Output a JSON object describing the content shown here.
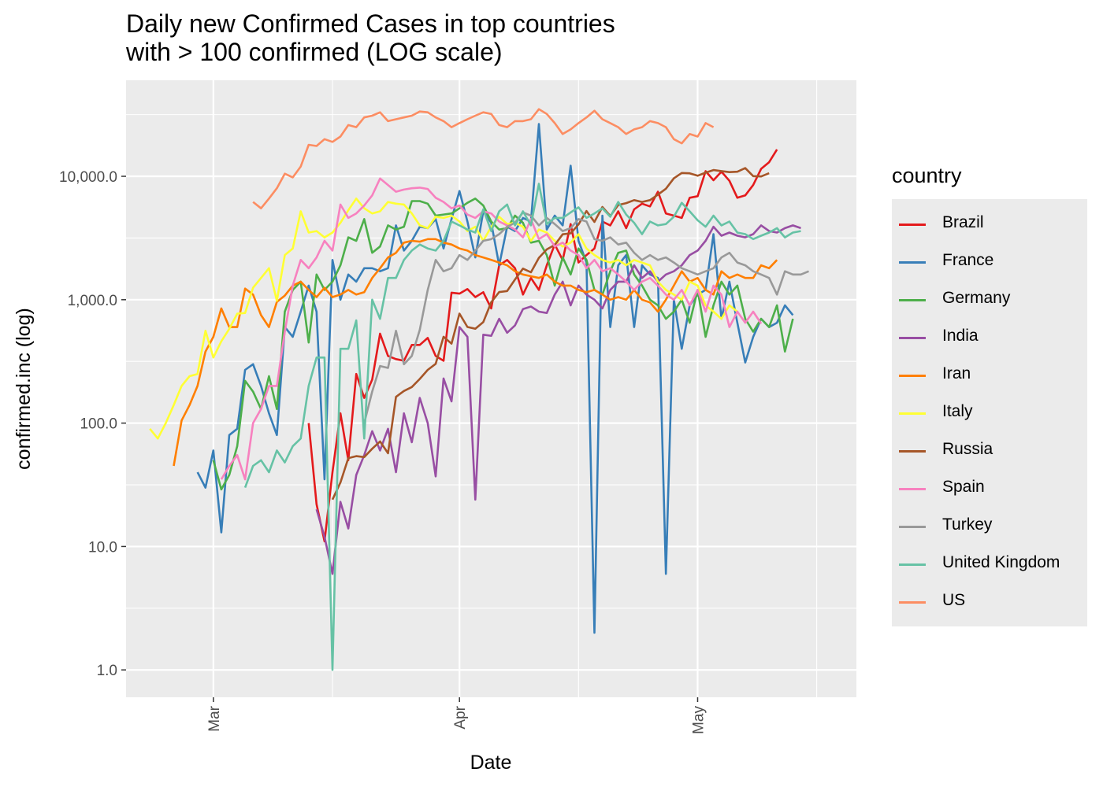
{
  "chart_data": {
    "type": "line",
    "title": [
      "Daily new Confirmed Cases in top countries",
      "with >  100  confirmed (LOG scale)"
    ],
    "xlabel": "Date",
    "ylabel": "confirmed.inc (log)",
    "yscale": "log10",
    "ylim": [
      0.6,
      60000
    ],
    "xlim": [
      "2020-02-19",
      "2020-05-21"
    ],
    "y_ticks": [
      {
        "value": 1,
        "label": "1.0"
      },
      {
        "value": 10,
        "label": "10.0"
      },
      {
        "value": 100,
        "label": "100.0"
      },
      {
        "value": 1000,
        "label": "1,000.0"
      },
      {
        "value": 10000,
        "label": "10,000.0"
      }
    ],
    "x_ticks": [
      {
        "date": "2020-03-01",
        "label": "Mar"
      },
      {
        "date": "2020-04-01",
        "label": "Apr"
      },
      {
        "date": "2020-05-01",
        "label": "May"
      }
    ],
    "x_minor_grid": [
      "2020-03-16",
      "2020-04-16",
      "2020-05-16"
    ],
    "grid": true,
    "legend": {
      "title": "country",
      "position": "right"
    },
    "series": [
      {
        "name": "Brazil",
        "color": "#e41a1c",
        "start": "2020-03-13",
        "values": [
          100,
          22,
          11,
          40,
          120,
          50,
          250,
          160,
          225,
          530,
          350,
          330,
          320,
          430,
          430,
          490,
          350,
          320,
          1140,
          1120,
          1220,
          1050,
          1150,
          850,
          1900,
          2100,
          1800,
          1100,
          1500,
          1200,
          1900,
          2800,
          2100,
          4100,
          2000,
          2300,
          2600,
          4300,
          4000,
          5200,
          3800,
          5400,
          6000,
          5700,
          7500,
          5000,
          4800,
          4600,
          6700,
          6900,
          11000,
          9300,
          10900,
          9200,
          6700,
          7000,
          8500,
          11500,
          13000,
          16500
        ]
      },
      {
        "name": "France",
        "color": "#377eb8",
        "start": "2020-02-28",
        "values": [
          40,
          30,
          60,
          13,
          80,
          90,
          270,
          300,
          200,
          120,
          80,
          600,
          500,
          800,
          1300,
          800,
          35,
          2100,
          1000,
          1600,
          1400,
          1800,
          1800,
          1700,
          1800,
          4000,
          2500,
          3000,
          3900,
          3800,
          4500,
          2600,
          4500,
          7600,
          4300,
          2200,
          5200,
          4200,
          1900,
          3900,
          3600,
          4600,
          4300,
          26500,
          3700,
          4800,
          4000,
          12200,
          3000,
          2000,
          2,
          4800,
          600,
          1900,
          2300,
          600,
          1900,
          1600,
          1500,
          6,
          1000,
          400,
          900,
          1100,
          1200,
          3400,
          700,
          1400,
          650,
          310,
          500,
          700,
          600,
          650,
          900,
          750
        ]
      },
      {
        "name": "Germany",
        "color": "#4daf4a",
        "start": "2020-03-01",
        "values": [
          50,
          29,
          38,
          65,
          220,
          180,
          130,
          240,
          130,
          800,
          1200,
          1400,
          450,
          1600,
          1200,
          1400,
          1900,
          3200,
          3000,
          4500,
          2400,
          2700,
          4000,
          3700,
          3900,
          6300,
          6300,
          6000,
          4800,
          4900,
          5000,
          5500,
          6100,
          6600,
          5800,
          4300,
          3700,
          3800,
          4800,
          4200,
          2900,
          3000,
          2300,
          1300,
          2200,
          1600,
          2600,
          2100,
          1200,
          1100,
          1700,
          2400,
          2500,
          1600,
          1300,
          1000,
          900,
          700,
          800,
          1000,
          650,
          1200,
          500,
          900,
          1400,
          1100,
          1300,
          700,
          550,
          700,
          600,
          900,
          380,
          700
        ]
      },
      {
        "name": "India",
        "color": "#984ea3",
        "start": "2020-03-14",
        "values": [
          20,
          12,
          6,
          23,
          14,
          38,
          55,
          86,
          60,
          90,
          40,
          120,
          70,
          160,
          100,
          37,
          230,
          150,
          600,
          500,
          24,
          520,
          510,
          700,
          540,
          620,
          840,
          880,
          800,
          780,
          1100,
          1400,
          900,
          1300,
          1100,
          1000,
          850,
          1200,
          1400,
          1400,
          1900,
          1500,
          1700,
          1400,
          1600,
          1700,
          1900,
          2300,
          2500,
          3000,
          3900,
          3300,
          3500,
          3300,
          3200,
          3400,
          4000,
          3600,
          3500,
          3800,
          4000,
          3800
        ]
      },
      {
        "name": "Iran",
        "color": "#ff7f00",
        "start": "2020-02-25",
        "values": [
          45,
          105,
          140,
          200,
          380,
          500,
          850,
          600,
          600,
          1230,
          1100,
          750,
          600,
          960,
          1080,
          1300,
          1400,
          1200,
          1050,
          1250,
          1050,
          1100,
          1200,
          1100,
          1150,
          1500,
          1800,
          2200,
          2400,
          2900,
          3000,
          2950,
          3100,
          3100,
          2900,
          2800,
          2600,
          2500,
          2300,
          2200,
          2100,
          2000,
          1900,
          1700,
          1600,
          1550,
          1500,
          1600,
          1400,
          1300,
          1300,
          1200,
          1150,
          1200,
          1100,
          1000,
          1050,
          1000,
          1200,
          1000,
          950,
          800,
          1000,
          1300,
          1700,
          1400,
          1500,
          1200,
          1100,
          1700,
          1500,
          1600,
          1500,
          1500,
          1900,
          1800,
          2100
        ]
      },
      {
        "name": "Italy",
        "color": "#ffff33",
        "start": "2020-02-22",
        "values": [
          90,
          75,
          100,
          140,
          200,
          240,
          250,
          560,
          340,
          460,
          580,
          770,
          780,
          1250,
          1500,
          1800,
          980,
          2300,
          2600,
          5200,
          3500,
          3600,
          3200,
          3500,
          4200,
          5300,
          6600,
          5500,
          5000,
          5200,
          6200,
          6000,
          5900,
          5000,
          4000,
          3800,
          4700,
          4600,
          4800,
          4300,
          3600,
          3900,
          3000,
          3900,
          4700,
          4100,
          4200,
          3900,
          3000,
          3700,
          3500,
          3000,
          2700,
          2900,
          3400,
          2600,
          2300,
          2100,
          2000,
          2100,
          1900,
          2100,
          2000,
          1900,
          1400,
          1200,
          1100,
          1000,
          1400,
          1300,
          900,
          800,
          700,
          900,
          800
        ]
      },
      {
        "name": "Russia",
        "color": "#a65628",
        "start": "2020-03-16",
        "values": [
          24,
          33,
          52,
          54,
          53,
          62,
          71,
          57,
          163,
          182,
          196,
          228,
          270,
          302,
          501,
          440,
          771,
          601,
          582,
          658,
          954,
          1154,
          1175,
          1459,
          1786,
          1667,
          2186,
          2558,
          2774,
          3388,
          3448,
          4070,
          5236,
          4268,
          5642,
          4774,
          5849,
          6060,
          6411,
          6198,
          6411,
          7099,
          7933,
          9623,
          10633,
          10581,
          10102,
          10699,
          11231,
          11012,
          10817,
          10899,
          11656,
          10028,
          9974,
          10598
        ]
      },
      {
        "name": "Spain",
        "color": "#f781bf",
        "start": "2020-03-02",
        "values": [
          35,
          45,
          55,
          35,
          100,
          130,
          200,
          200,
          550,
          1300,
          2100,
          1800,
          2200,
          3000,
          2500,
          5900,
          4600,
          5000,
          5800,
          7000,
          9600,
          8500,
          7500,
          7800,
          8000,
          8100,
          7900,
          6700,
          6200,
          5500,
          5800,
          4900,
          4600,
          5200,
          5000,
          4300,
          4000,
          3700,
          3200,
          4500,
          3100,
          3400,
          2700,
          2900,
          2500,
          2300,
          1800,
          2100,
          1700,
          1800,
          1600,
          1400,
          1200,
          1400,
          1500,
          1300,
          1100,
          1000,
          1200,
          900,
          1200,
          800,
          1300,
          1100,
          600,
          800,
          650,
          800,
          640
        ]
      },
      {
        "name": "Turkey",
        "color": "#999999",
        "start": "2020-03-20",
        "values": [
          100,
          180,
          290,
          280,
          560,
          300,
          350,
          570,
          1200,
          2100,
          1700,
          1800,
          2300,
          2100,
          2500,
          3000,
          3100,
          3400,
          3900,
          4200,
          5100,
          4800,
          4000,
          4600,
          4100,
          3600,
          3800,
          4500,
          4300,
          3100,
          3000,
          3200,
          2800,
          2900,
          2400,
          2100,
          2300,
          2100,
          2200,
          2000,
          1800,
          1700,
          1600,
          1700,
          1800,
          2200,
          2400,
          2000,
          1900,
          1700,
          1600,
          1500,
          1100,
          1700,
          1600,
          1600,
          1700
        ]
      },
      {
        "name": "United Kingdom",
        "color": "#66c2a5",
        "start": "2020-03-05",
        "values": [
          30,
          45,
          50,
          40,
          60,
          48,
          65,
          75,
          200,
          340,
          340,
          1,
          400,
          400,
          680,
          75,
          1000,
          700,
          1500,
          1500,
          2100,
          2500,
          2800,
          2600,
          2500,
          3000,
          4300,
          4000,
          3700,
          3500,
          5400,
          3600,
          5200,
          5900,
          4000,
          5200,
          4000,
          8700,
          4100,
          4600,
          4600,
          5100,
          5600,
          4600,
          5000,
          5500,
          4700,
          6200,
          4900,
          4200,
          3400,
          4300,
          4000,
          4100,
          4700,
          6100,
          5200,
          4400,
          3900,
          4800,
          4000,
          4300,
          3500,
          3400,
          3100,
          3300,
          3500,
          3800,
          3200,
          3500,
          3600
        ]
      },
      {
        "name": "US",
        "color": "#fc8d62",
        "start": "2020-03-06",
        "values": [
          6200,
          5500,
          6600,
          8000,
          10500,
          9800,
          12000,
          18000,
          17600,
          20000,
          19000,
          21000,
          26000,
          25000,
          30000,
          31000,
          33000,
          28000,
          29000,
          30000,
          31000,
          33500,
          33000,
          30000,
          28000,
          25000,
          27000,
          29000,
          31000,
          33000,
          32000,
          26000,
          25000,
          28000,
          28000,
          29000,
          35000,
          32000,
          27000,
          22000,
          24000,
          27000,
          30000,
          34000,
          29000,
          27000,
          25000,
          22000,
          24000,
          25000,
          28000,
          27000,
          25000,
          20000,
          18500,
          22000,
          21000,
          27000,
          25000
        ]
      }
    ]
  }
}
